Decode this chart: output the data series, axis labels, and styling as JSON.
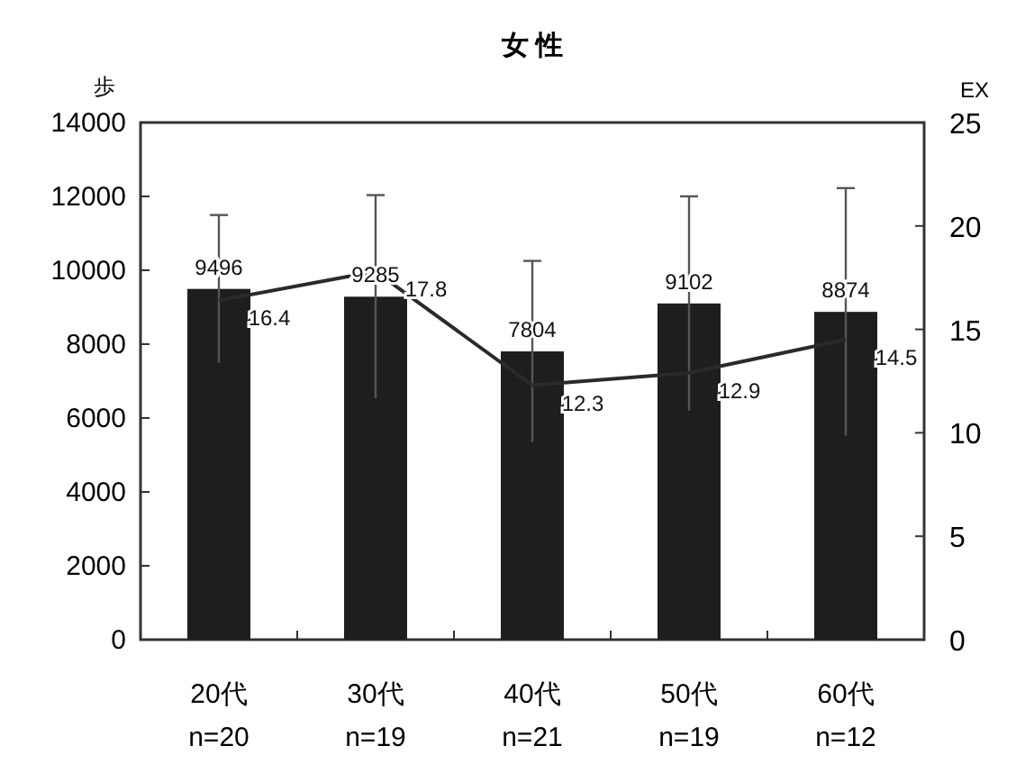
{
  "chart_data": {
    "type": "bar",
    "title": "女 性",
    "ylabel": "歩",
    "y2label": "EX",
    "categories": [
      "20代\nn=20",
      "30代\nn=19",
      "40代\nn=21",
      "50代\nn=19",
      "60代\nn=12"
    ],
    "series": [
      {
        "color": "#1e1e1e",
        "values": [
          9496,
          9285,
          7804,
          9102,
          8874
        ],
        "errors": [
          2000,
          2750,
          2450,
          2900,
          3350
        ]
      },
      {
        "type": "line",
        "axis": "y2",
        "color": "#2a2a2a",
        "values": [
          16.4,
          17.8,
          12.3,
          12.9,
          14.5
        ]
      }
    ],
    "ylim": [
      0,
      14000
    ],
    "yticks": [
      0,
      2000,
      4000,
      6000,
      8000,
      10000,
      12000,
      14000
    ],
    "y2lim": [
      0,
      25
    ],
    "y2ticks": [
      0,
      5,
      10,
      15,
      20,
      25
    ],
    "data_labels": true,
    "grid": false,
    "marker": "none",
    "line_style": "solid"
  }
}
